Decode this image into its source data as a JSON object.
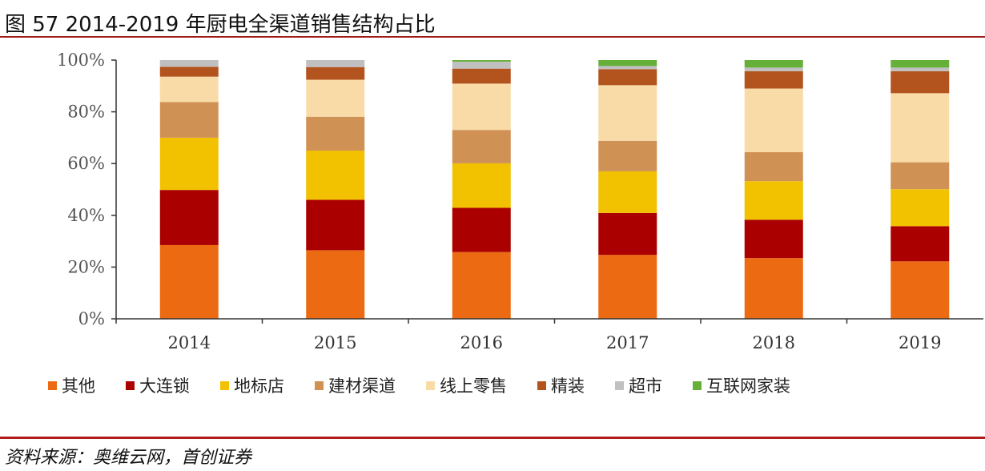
{
  "title": "图 57 2014-2019 年厨电全渠道销售结构占比",
  "source": "资料来源：奥维云网，首创证券",
  "chart_data": {
    "type": "stacked-bar",
    "title": "图 57 2014-2019 年厨电全渠道销售结构占比",
    "categories": [
      "2014",
      "2015",
      "2016",
      "2017",
      "2018",
      "2019"
    ],
    "ylim": [
      0,
      100
    ],
    "yticks": [
      "0%",
      "20%",
      "40%",
      "60%",
      "80%",
      "100%"
    ],
    "grid": false,
    "legend_position": "bottom",
    "series": [
      {
        "name": "其他",
        "color": "#ec6a12",
        "values": [
          28.5,
          26.5,
          25.8,
          24.7,
          23.5,
          22.2
        ]
      },
      {
        "name": "大连锁",
        "color": "#ab0000",
        "values": [
          21.3,
          19.5,
          17.1,
          16.2,
          14.8,
          13.6
        ]
      },
      {
        "name": "地标店",
        "color": "#f2c100",
        "values": [
          20.2,
          19.0,
          17.2,
          16.1,
          14.9,
          14.3
        ]
      },
      {
        "name": "建材渠道",
        "color": "#d09154",
        "values": [
          13.8,
          13.1,
          12.9,
          11.8,
          11.2,
          10.4
        ]
      },
      {
        "name": "线上零售",
        "color": "#f9dba8",
        "values": [
          9.8,
          14.3,
          17.9,
          21.5,
          24.6,
          26.7
        ]
      },
      {
        "name": "精装",
        "color": "#b3541e",
        "values": [
          3.8,
          4.9,
          5.8,
          6.2,
          6.7,
          8.5
        ]
      },
      {
        "name": "超市",
        "color": "#c0c0c0",
        "values": [
          2.6,
          2.7,
          2.7,
          1.2,
          1.4,
          1.4
        ]
      },
      {
        "name": "互联网家装",
        "color": "#66b03a",
        "values": [
          0,
          0,
          0.6,
          2.3,
          2.9,
          2.9
        ]
      }
    ]
  }
}
